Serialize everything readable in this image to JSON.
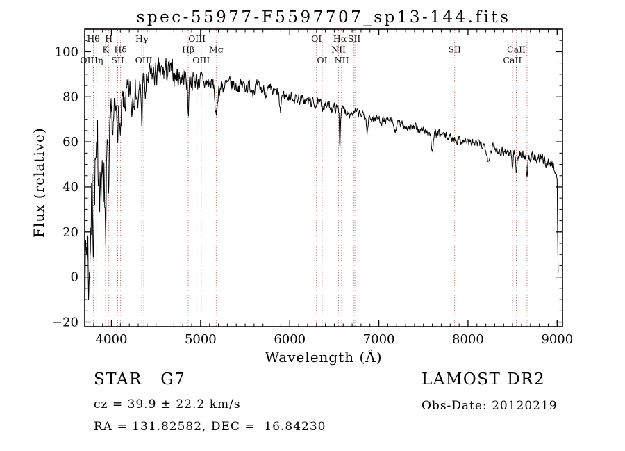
{
  "title": "spec-55977-F5597707_sp13-144.fits",
  "annotations": {
    "class_label": "STAR   G7",
    "cz": "cz = 39.9 ± 22.2 km/s",
    "radec": "RA = 131.82582, DEC =  16.84230",
    "survey": "LAMOST DR2",
    "obs_date": "Obs-Date: 20120219"
  },
  "chart_data": {
    "type": "line",
    "title": "spec-55977-F5597707_sp13-144.fits",
    "xlabel": "Wavelength (Å)",
    "ylabel": "Flux (relative)",
    "xlim": [
      3700,
      9060
    ],
    "ylim": [
      -22,
      110
    ],
    "xticks": [
      4000,
      5000,
      6000,
      7000,
      8000,
      9000
    ],
    "yticks": [
      -20,
      0,
      20,
      40,
      60,
      80,
      100
    ],
    "x_minor_step": 100,
    "y_minor_step": 5,
    "grid": false,
    "line_color": "#000000",
    "marker_color": "#9a5047",
    "label_color": "#111111",
    "spectral_lines": [
      {
        "label": "Hθ",
        "wavelength": 3798,
        "row": 0
      },
      {
        "label": "H",
        "wavelength": 3970,
        "row": 0
      },
      {
        "label": "Hγ",
        "wavelength": 4340,
        "row": 0
      },
      {
        "label": "OIII",
        "wavelength": 4959,
        "row": 0
      },
      {
        "label": "OI",
        "wavelength": 6300,
        "row": 0
      },
      {
        "label": "Hα",
        "wavelength": 6563,
        "row": 0
      },
      {
        "label": "SII",
        "wavelength": 6724,
        "row": 0,
        "line": false
      },
      {
        "label": "K",
        "wavelength": 3934,
        "row": 1
      },
      {
        "label": "Hδ",
        "wavelength": 4102,
        "row": 1
      },
      {
        "label": "Hβ",
        "wavelength": 4861,
        "row": 1
      },
      {
        "label": "Mg",
        "wavelength": 5175,
        "row": 1
      },
      {
        "label": "NII",
        "wavelength": 6548,
        "row": 1
      },
      {
        "label": "SII",
        "wavelength": 7850,
        "row": 1
      },
      {
        "label": "CaII",
        "wavelength": 8542,
        "row": 1
      },
      {
        "label": "OII",
        "wavelength": 3727,
        "row": 2
      },
      {
        "label": "Hη",
        "wavelength": 3835,
        "row": 2
      },
      {
        "label": "SII",
        "wavelength": 4070,
        "row": 2
      },
      {
        "label": "OIII",
        "wavelength": 4363,
        "row": 2
      },
      {
        "label": "OIII",
        "wavelength": 5007,
        "row": 2
      },
      {
        "label": "OI",
        "wavelength": 6364,
        "row": 2
      },
      {
        "label": "NII",
        "wavelength": 6583,
        "row": 2
      },
      {
        "label": "CaII",
        "wavelength": 8498,
        "row": 2
      },
      {
        "label": "",
        "wavelength": 6717,
        "row": -1
      },
      {
        "label": "",
        "wavelength": 6731,
        "row": -1
      },
      {
        "label": "",
        "wavelength": 8662,
        "row": -1
      }
    ],
    "spectrum": {
      "sample_step": 4,
      "seed": 7,
      "envelope": [
        [
          3700,
          12
        ],
        [
          3715,
          6
        ],
        [
          3730,
          20
        ],
        [
          3745,
          10
        ],
        [
          3760,
          28
        ],
        [
          3775,
          30
        ],
        [
          3790,
          38
        ],
        [
          3810,
          44
        ],
        [
          3830,
          50
        ],
        [
          3850,
          52
        ],
        [
          3870,
          52
        ],
        [
          3890,
          46
        ],
        [
          3910,
          50
        ],
        [
          3930,
          48
        ],
        [
          3950,
          52
        ],
        [
          3970,
          55
        ],
        [
          3990,
          62
        ],
        [
          4010,
          66
        ],
        [
          4040,
          70
        ],
        [
          4070,
          71
        ],
        [
          4100,
          73
        ],
        [
          4150,
          78
        ],
        [
          4200,
          81
        ],
        [
          4250,
          83
        ],
        [
          4300,
          84
        ],
        [
          4350,
          86
        ],
        [
          4400,
          88
        ],
        [
          4450,
          89
        ],
        [
          4500,
          90
        ],
        [
          4550,
          90
        ],
        [
          4600,
          91
        ],
        [
          4650,
          91
        ],
        [
          4700,
          90
        ],
        [
          4750,
          89
        ],
        [
          4800,
          89
        ],
        [
          4850,
          88
        ],
        [
          4900,
          88
        ],
        [
          4950,
          87
        ],
        [
          5000,
          87
        ],
        [
          5050,
          86
        ],
        [
          5100,
          86
        ],
        [
          5150,
          85
        ],
        [
          5200,
          84
        ],
        [
          5300,
          85
        ],
        [
          5400,
          85
        ],
        [
          5500,
          85
        ],
        [
          5600,
          84
        ],
        [
          5700,
          83
        ],
        [
          5800,
          82
        ],
        [
          5900,
          81
        ],
        [
          6000,
          80
        ],
        [
          6100,
          79
        ],
        [
          6200,
          78
        ],
        [
          6300,
          77
        ],
        [
          6400,
          76
        ],
        [
          6500,
          75
        ],
        [
          6600,
          74
        ],
        [
          6700,
          73
        ],
        [
          6800,
          72
        ],
        [
          6900,
          71
        ],
        [
          7000,
          70
        ],
        [
          7100,
          69
        ],
        [
          7200,
          68
        ],
        [
          7300,
          67
        ],
        [
          7400,
          66
        ],
        [
          7500,
          65
        ],
        [
          7600,
          64
        ],
        [
          7700,
          63
        ],
        [
          7800,
          62
        ],
        [
          7900,
          61
        ],
        [
          8000,
          60
        ],
        [
          8100,
          59
        ],
        [
          8200,
          58
        ],
        [
          8300,
          57
        ],
        [
          8400,
          56
        ],
        [
          8500,
          55
        ],
        [
          8600,
          54
        ],
        [
          8700,
          53
        ],
        [
          8800,
          52
        ],
        [
          8900,
          51
        ],
        [
          8970,
          49
        ],
        [
          9000,
          44
        ],
        [
          9005,
          20
        ],
        [
          9010,
          4
        ],
        [
          9012,
          2
        ]
      ],
      "noise_amplitude": [
        [
          3700,
          30
        ],
        [
          3760,
          30
        ],
        [
          3820,
          27
        ],
        [
          3880,
          25
        ],
        [
          3940,
          20
        ],
        [
          4000,
          15
        ],
        [
          4060,
          12
        ],
        [
          4120,
          10
        ],
        [
          4200,
          9
        ],
        [
          4300,
          8
        ],
        [
          4450,
          8
        ],
        [
          4600,
          7.5
        ],
        [
          4800,
          6.5
        ],
        [
          5000,
          5.5
        ],
        [
          5200,
          5
        ],
        [
          5500,
          4.2
        ],
        [
          5800,
          3.6
        ],
        [
          6100,
          3.2
        ],
        [
          6400,
          3
        ],
        [
          6700,
          2.8
        ],
        [
          7000,
          2.6
        ],
        [
          7300,
          2.5
        ],
        [
          7600,
          2.5
        ],
        [
          7900,
          2.5
        ],
        [
          8200,
          2.8
        ],
        [
          8500,
          3
        ],
        [
          8800,
          3.2
        ],
        [
          9012,
          3.2
        ]
      ],
      "absorption_features": [
        {
          "center": 3750,
          "depth": 18,
          "width": 8
        },
        {
          "center": 3798,
          "depth": 12,
          "width": 6
        },
        {
          "center": 3835,
          "depth": 12,
          "width": 6
        },
        {
          "center": 3889,
          "depth": 14,
          "width": 6
        },
        {
          "center": 3934,
          "depth": 22,
          "width": 7
        },
        {
          "center": 3969,
          "depth": 18,
          "width": 7
        },
        {
          "center": 4102,
          "depth": 14,
          "width": 6
        },
        {
          "center": 4227,
          "depth": 8,
          "width": 6
        },
        {
          "center": 4300,
          "depth": 8,
          "width": 10
        },
        {
          "center": 4340,
          "depth": 16,
          "width": 6
        },
        {
          "center": 4383,
          "depth": 8,
          "width": 6
        },
        {
          "center": 4861,
          "depth": 15,
          "width": 6
        },
        {
          "center": 5175,
          "depth": 15,
          "width": 11
        },
        {
          "center": 5893,
          "depth": 9,
          "width": 8
        },
        {
          "center": 6563,
          "depth": 16,
          "width": 5
        },
        {
          "center": 6870,
          "depth": 7,
          "width": 9
        },
        {
          "center": 7180,
          "depth": 4,
          "width": 10
        },
        {
          "center": 7600,
          "depth": 8,
          "width": 12
        },
        {
          "center": 8230,
          "depth": 6,
          "width": 12
        },
        {
          "center": 8498,
          "depth": 7,
          "width": 6
        },
        {
          "center": 8542,
          "depth": 9,
          "width": 6
        },
        {
          "center": 8662,
          "depth": 8,
          "width": 6
        }
      ]
    }
  }
}
